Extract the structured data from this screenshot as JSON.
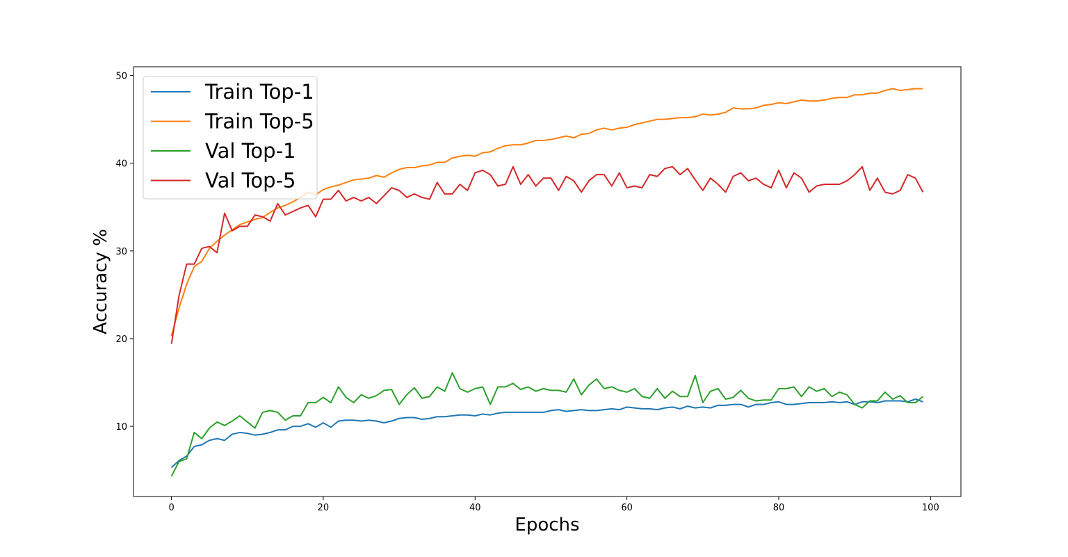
{
  "chart_data": {
    "type": "line",
    "title": "",
    "xlabel": "Epochs",
    "ylabel": "Accuracy %",
    "xlim": [
      -5,
      104
    ],
    "ylim": [
      2,
      51
    ],
    "xticks": [
      0,
      20,
      40,
      60,
      80,
      100
    ],
    "yticks": [
      10,
      20,
      30,
      40,
      50
    ],
    "grid": false,
    "legend_position": "upper-left",
    "x": [
      0,
      1,
      2,
      3,
      4,
      5,
      6,
      7,
      8,
      9,
      10,
      11,
      12,
      13,
      14,
      15,
      16,
      17,
      18,
      19,
      20,
      21,
      22,
      23,
      24,
      25,
      26,
      27,
      28,
      29,
      30,
      31,
      32,
      33,
      34,
      35,
      36,
      37,
      38,
      39,
      40,
      41,
      42,
      43,
      44,
      45,
      46,
      47,
      48,
      49,
      50,
      51,
      52,
      53,
      54,
      55,
      56,
      57,
      58,
      59,
      60,
      61,
      62,
      63,
      64,
      65,
      66,
      67,
      68,
      69,
      70,
      71,
      72,
      73,
      74,
      75,
      76,
      77,
      78,
      79,
      80,
      81,
      82,
      83,
      84,
      85,
      86,
      87,
      88,
      89,
      90,
      91,
      92,
      93,
      94,
      95,
      96,
      97,
      98,
      99
    ],
    "series": [
      {
        "name": "Train Top-1",
        "color": "#1f77b4",
        "values": [
          5.3,
          6.1,
          6.6,
          7.7,
          7.9,
          8.4,
          8.6,
          8.4,
          9.1,
          9.3,
          9.2,
          9.0,
          9.1,
          9.3,
          9.6,
          9.6,
          10.0,
          10.0,
          10.3,
          9.9,
          10.4,
          9.9,
          10.6,
          10.7,
          10.7,
          10.6,
          10.7,
          10.6,
          10.4,
          10.6,
          10.9,
          11.0,
          11.0,
          10.8,
          10.9,
          11.1,
          11.1,
          11.2,
          11.3,
          11.3,
          11.2,
          11.4,
          11.3,
          11.5,
          11.6,
          11.6,
          11.6,
          11.6,
          11.6,
          11.6,
          11.8,
          11.9,
          11.7,
          11.8,
          11.9,
          11.8,
          11.8,
          11.9,
          12.0,
          11.9,
          12.2,
          12.1,
          12.0,
          12.0,
          11.9,
          12.1,
          12.2,
          12.0,
          12.3,
          12.1,
          12.2,
          12.1,
          12.4,
          12.4,
          12.5,
          12.5,
          12.2,
          12.5,
          12.5,
          12.7,
          12.8,
          12.5,
          12.5,
          12.6,
          12.7,
          12.7,
          12.7,
          12.8,
          12.7,
          12.8,
          12.5,
          12.8,
          12.8,
          12.7,
          12.9,
          12.9,
          12.9,
          12.8,
          13.1,
          12.8
        ]
      },
      {
        "name": "Train Top-5",
        "color": "#ff7f0e",
        "values": [
          20.3,
          23.5,
          26.2,
          28.2,
          28.8,
          30.3,
          31.1,
          31.8,
          32.4,
          33.0,
          33.3,
          33.6,
          33.8,
          34.4,
          34.9,
          35.2,
          35.6,
          36.1,
          36.7,
          36.4,
          37.0,
          37.3,
          37.5,
          37.8,
          38.1,
          38.2,
          38.3,
          38.6,
          38.4,
          38.9,
          39.3,
          39.5,
          39.5,
          39.7,
          39.8,
          40.1,
          40.1,
          40.6,
          40.8,
          40.9,
          40.8,
          41.2,
          41.3,
          41.7,
          42.0,
          42.1,
          42.1,
          42.3,
          42.6,
          42.6,
          42.7,
          42.9,
          43.1,
          42.9,
          43.3,
          43.4,
          43.8,
          44.0,
          43.8,
          44.0,
          44.1,
          44.4,
          44.6,
          44.8,
          45.0,
          45.0,
          45.1,
          45.2,
          45.2,
          45.3,
          45.6,
          45.5,
          45.6,
          45.8,
          46.3,
          46.2,
          46.2,
          46.3,
          46.6,
          46.7,
          46.9,
          46.8,
          47.0,
          47.2,
          47.1,
          47.1,
          47.2,
          47.4,
          47.5,
          47.5,
          47.8,
          47.8,
          48.0,
          48.0,
          48.3,
          48.5,
          48.3,
          48.4,
          48.5,
          48.5
        ]
      },
      {
        "name": "Val Top-1",
        "color": "#2ca02c",
        "values": [
          4.3,
          6.0,
          6.3,
          9.3,
          8.6,
          9.8,
          10.5,
          10.1,
          10.6,
          11.2,
          10.5,
          9.8,
          11.6,
          11.8,
          11.6,
          10.7,
          11.2,
          11.2,
          12.7,
          12.7,
          13.3,
          12.7,
          14.5,
          13.3,
          12.7,
          13.6,
          13.2,
          13.5,
          14.1,
          14.2,
          12.5,
          13.6,
          14.4,
          13.2,
          13.4,
          14.5,
          14.0,
          16.1,
          14.3,
          13.9,
          14.3,
          14.5,
          12.5,
          14.5,
          14.5,
          14.9,
          14.2,
          14.5,
          14.0,
          14.3,
          14.1,
          14.1,
          13.9,
          15.4,
          13.6,
          14.7,
          15.4,
          14.3,
          14.5,
          14.1,
          13.9,
          14.3,
          13.4,
          13.2,
          14.3,
          13.2,
          14.0,
          13.4,
          13.4,
          15.8,
          12.7,
          14.0,
          14.3,
          13.1,
          13.3,
          14.1,
          13.2,
          12.9,
          13.0,
          13.0,
          14.3,
          14.3,
          14.5,
          13.4,
          14.5,
          14.0,
          14.3,
          13.4,
          13.9,
          13.6,
          12.5,
          12.1,
          12.9,
          12.9,
          13.9,
          13.1,
          13.5,
          12.7,
          12.7,
          13.4
        ]
      },
      {
        "name": "Val Top-5",
        "color": "#d62728",
        "values": [
          19.4,
          24.9,
          28.5,
          28.5,
          30.3,
          30.5,
          29.8,
          34.3,
          32.3,
          32.8,
          32.8,
          34.1,
          33.9,
          33.4,
          35.4,
          34.1,
          34.5,
          34.9,
          35.2,
          33.9,
          35.9,
          35.9,
          36.9,
          35.7,
          36.1,
          35.7,
          36.1,
          35.4,
          36.3,
          37.2,
          36.9,
          36.1,
          36.5,
          36.1,
          35.9,
          37.8,
          36.5,
          36.5,
          37.6,
          36.9,
          38.9,
          39.2,
          38.7,
          37.4,
          37.6,
          39.6,
          37.6,
          38.7,
          37.4,
          38.3,
          38.3,
          36.9,
          38.5,
          38.0,
          36.7,
          38.0,
          38.7,
          38.7,
          37.4,
          38.9,
          37.2,
          37.4,
          37.2,
          38.7,
          38.5,
          39.4,
          39.6,
          38.7,
          39.4,
          38.1,
          36.9,
          38.3,
          37.6,
          36.7,
          38.5,
          38.9,
          38.0,
          38.3,
          37.6,
          37.2,
          39.2,
          37.2,
          38.9,
          38.3,
          36.7,
          37.4,
          37.6,
          37.6,
          37.6,
          38.0,
          38.7,
          39.6,
          36.9,
          38.3,
          36.7,
          36.5,
          36.9,
          38.7,
          38.3,
          36.7
        ]
      }
    ]
  }
}
